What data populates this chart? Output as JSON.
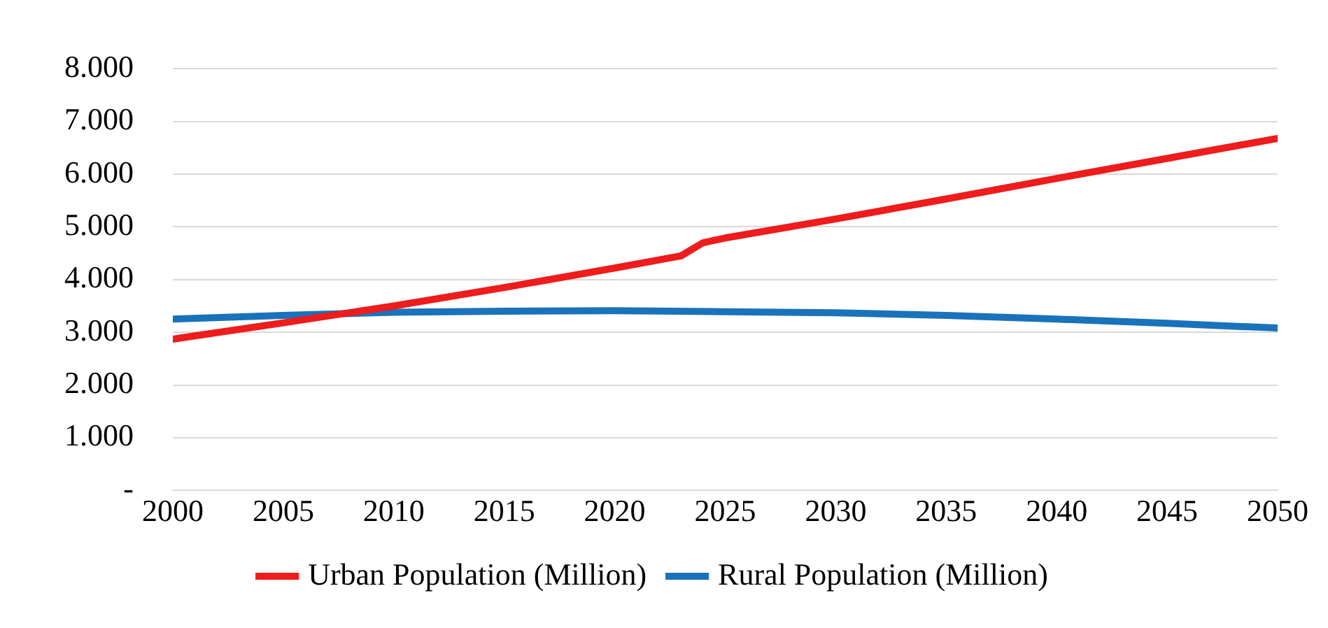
{
  "chart_data": {
    "type": "line",
    "xlim": [
      2000,
      2050
    ],
    "xticks": [
      2000,
      2005,
      2010,
      2015,
      2020,
      2025,
      2030,
      2035,
      2040,
      2045,
      2050
    ],
    "ylim": [
      0,
      8000
    ],
    "yticks": [
      {
        "value": 0,
        "label": "-"
      },
      {
        "value": 1000,
        "label": "1.000"
      },
      {
        "value": 2000,
        "label": "2.000"
      },
      {
        "value": 3000,
        "label": "3.000"
      },
      {
        "value": 4000,
        "label": "4.000"
      },
      {
        "value": 5000,
        "label": "5.000"
      },
      {
        "value": 6000,
        "label": "6.000"
      },
      {
        "value": 7000,
        "label": "7.000"
      },
      {
        "value": 8000,
        "label": "8.000"
      }
    ],
    "grid": "y",
    "legend": "bottom",
    "marker": "none",
    "line_style": "solid",
    "series": [
      {
        "name": "Urban Population (Million)",
        "color": "#ee1c1c",
        "x": [
          2000,
          2005,
          2010,
          2015,
          2020,
          2023,
          2024,
          2025,
          2030,
          2035,
          2040,
          2045,
          2050
        ],
        "values": [
          2870,
          3180,
          3500,
          3850,
          4220,
          4450,
          4700,
          4790,
          5150,
          5530,
          5920,
          6300,
          6680
        ]
      },
      {
        "name": "Rural Population (Million)",
        "color": "#1a72bb",
        "x": [
          2000,
          2005,
          2010,
          2015,
          2020,
          2025,
          2030,
          2035,
          2040,
          2045,
          2050
        ],
        "values": [
          3250,
          3320,
          3380,
          3400,
          3410,
          3390,
          3370,
          3320,
          3250,
          3170,
          3080
        ]
      }
    ]
  }
}
